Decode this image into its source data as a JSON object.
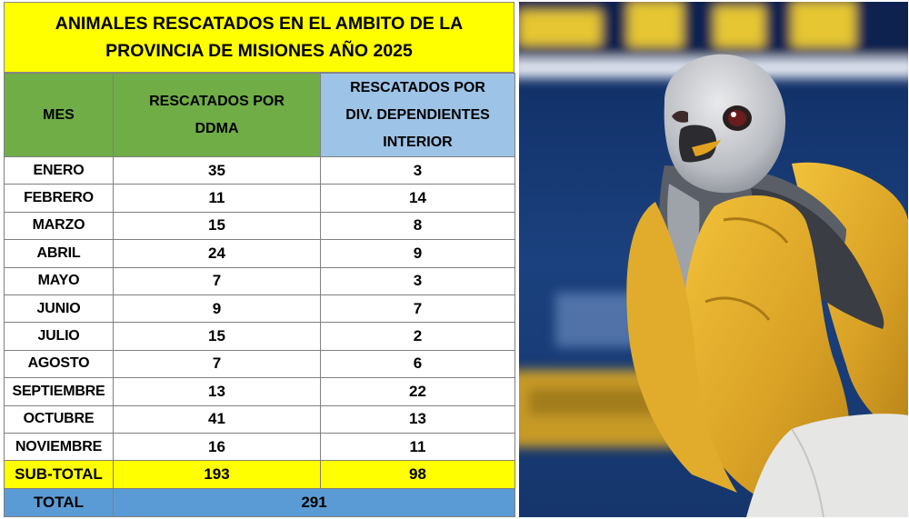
{
  "table": {
    "title": "ANIMALES RESCATADOS  EN EL AMBITO DE LA\nPROVINCIA DE MISIONES AÑO 2025",
    "headers": {
      "mes": "MES",
      "ddma": "RESCATADOS POR\nDDMA",
      "div": "RESCATADOS POR\nDIV. DEPENDIENTES\nINTERIOR"
    },
    "rows": [
      {
        "mes": "ENERO",
        "ddma": "35",
        "div": "3"
      },
      {
        "mes": "FEBRERO",
        "ddma": "11",
        "div": "14"
      },
      {
        "mes": "MARZO",
        "ddma": "15",
        "div": "8"
      },
      {
        "mes": "ABRIL",
        "ddma": "24",
        "div": "9"
      },
      {
        "mes": "MAYO",
        "ddma": "7",
        "div": "3"
      },
      {
        "mes": "JUNIO",
        "ddma": "9",
        "div": "7"
      },
      {
        "mes": "JULIO",
        "ddma": "15",
        "div": "2"
      },
      {
        "mes": "AGOSTO",
        "ddma": "7",
        "div": "6"
      },
      {
        "mes": "SEPTIEMBRE",
        "ddma": "13",
        "div": "22"
      },
      {
        "mes": "OCTUBRE",
        "ddma": "41",
        "div": "13"
      },
      {
        "mes": "NOVIEMBRE",
        "ddma": "16",
        "div": "11"
      }
    ],
    "subtotal": {
      "label": "SUB-TOTAL",
      "ddma": "193",
      "div": "98"
    },
    "total": {
      "label": "TOTAL",
      "value": "291"
    }
  },
  "colors": {
    "title_bg": "#ffff00",
    "green_header": "#70ad47",
    "blue_header": "#9dc3e6",
    "total_bg": "#5b9bd5"
  },
  "photo": {
    "subject": "rescued-hawk-on-gloved-hand"
  }
}
